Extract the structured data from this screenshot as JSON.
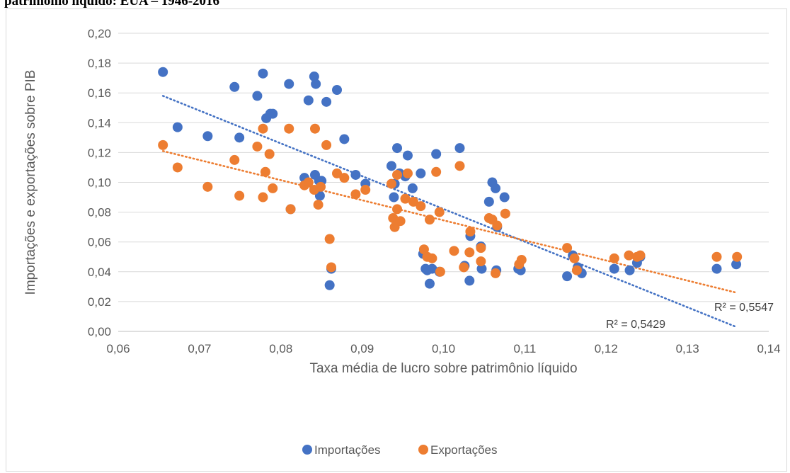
{
  "title": "patrimônio líquido: EUA – 1946-2016",
  "colors": {
    "importacoes": "#4472c4",
    "exportacoes": "#ed7d31",
    "grid": "#d9d9d9",
    "text": "#595959"
  },
  "chart_data": {
    "type": "scatter",
    "xlabel": "Taxa média de lucro sobre patrimônio líquido",
    "ylabel": "Importações e exportações sobre PIB",
    "xlim": [
      0.06,
      0.14
    ],
    "ylim": [
      0.0,
      0.2
    ],
    "x_ticks": [
      "0,06",
      "0,07",
      "0,08",
      "0,09",
      "0,10",
      "0,11",
      "0,12",
      "0,13",
      "0,14"
    ],
    "y_ticks": [
      "0,00",
      "0,02",
      "0,04",
      "0,06",
      "0,08",
      "0,10",
      "0,12",
      "0,14",
      "0,16",
      "0,18",
      "0,20"
    ],
    "grid": "horizontal",
    "legend_position": "bottom",
    "series": [
      {
        "name": "Importações",
        "color": "#4472c4",
        "trendline": {
          "type": "linear",
          "x": [
            0.0655,
            0.136
          ],
          "y": [
            0.158,
            0.003
          ],
          "label": "R² = 0,5429"
        },
        "points": [
          [
            0.0655,
            0.174
          ],
          [
            0.0673,
            0.137
          ],
          [
            0.071,
            0.131
          ],
          [
            0.0743,
            0.164
          ],
          [
            0.0749,
            0.13
          ],
          [
            0.0771,
            0.158
          ],
          [
            0.0778,
            0.173
          ],
          [
            0.0782,
            0.143
          ],
          [
            0.0787,
            0.146
          ],
          [
            0.079,
            0.146
          ],
          [
            0.081,
            0.166
          ],
          [
            0.0812,
            0.082
          ],
          [
            0.0829,
            0.103
          ],
          [
            0.0834,
            0.155
          ],
          [
            0.0841,
            0.171
          ],
          [
            0.0843,
            0.166
          ],
          [
            0.0842,
            0.105
          ],
          [
            0.0847,
            0.101
          ],
          [
            0.0848,
            0.091
          ],
          [
            0.085,
            0.101
          ],
          [
            0.0856,
            0.154
          ],
          [
            0.086,
            0.031
          ],
          [
            0.0862,
            0.042
          ],
          [
            0.0869,
            0.162
          ],
          [
            0.0878,
            0.129
          ],
          [
            0.0892,
            0.105
          ],
          [
            0.0904,
            0.099
          ],
          [
            0.0936,
            0.111
          ],
          [
            0.0939,
            0.09
          ],
          [
            0.094,
            0.099
          ],
          [
            0.0943,
            0.123
          ],
          [
            0.0946,
            0.106
          ],
          [
            0.0953,
            0.104
          ],
          [
            0.0956,
            0.118
          ],
          [
            0.0962,
            0.096
          ],
          [
            0.0972,
            0.106
          ],
          [
            0.0975,
            0.052
          ],
          [
            0.0978,
            0.042
          ],
          [
            0.098,
            0.041
          ],
          [
            0.0983,
            0.032
          ],
          [
            0.0986,
            0.042
          ],
          [
            0.0991,
            0.119
          ],
          [
            0.0995,
            0.04
          ],
          [
            0.102,
            0.123
          ],
          [
            0.1026,
            0.044
          ],
          [
            0.1032,
            0.034
          ],
          [
            0.1033,
            0.064
          ],
          [
            0.1046,
            0.057
          ],
          [
            0.1047,
            0.042
          ],
          [
            0.1056,
            0.087
          ],
          [
            0.106,
            0.1
          ],
          [
            0.1064,
            0.096
          ],
          [
            0.1065,
            0.041
          ],
          [
            0.1066,
            0.07
          ],
          [
            0.1075,
            0.09
          ],
          [
            0.1092,
            0.042
          ],
          [
            0.1095,
            0.041
          ],
          [
            0.1152,
            0.037
          ],
          [
            0.1159,
            0.051
          ],
          [
            0.1165,
            0.043
          ],
          [
            0.117,
            0.039
          ],
          [
            0.121,
            0.042
          ],
          [
            0.1229,
            0.041
          ],
          [
            0.1238,
            0.046
          ],
          [
            0.1242,
            0.05
          ],
          [
            0.1336,
            0.042
          ],
          [
            0.136,
            0.045
          ]
        ]
      },
      {
        "name": "Exportações",
        "color": "#ed7d31",
        "trendline": {
          "type": "linear",
          "x": [
            0.0655,
            0.136
          ],
          "y": [
            0.121,
            0.026
          ],
          "label": "R² = 0,5547"
        },
        "points": [
          [
            0.0655,
            0.125
          ],
          [
            0.0673,
            0.11
          ],
          [
            0.071,
            0.097
          ],
          [
            0.0743,
            0.115
          ],
          [
            0.0749,
            0.091
          ],
          [
            0.0771,
            0.124
          ],
          [
            0.0778,
            0.09
          ],
          [
            0.0778,
            0.136
          ],
          [
            0.0781,
            0.107
          ],
          [
            0.0786,
            0.119
          ],
          [
            0.079,
            0.096
          ],
          [
            0.081,
            0.136
          ],
          [
            0.0812,
            0.082
          ],
          [
            0.0829,
            0.098
          ],
          [
            0.0834,
            0.1
          ],
          [
            0.0841,
            0.095
          ],
          [
            0.0842,
            0.136
          ],
          [
            0.0846,
            0.085
          ],
          [
            0.0849,
            0.097
          ],
          [
            0.0856,
            0.125
          ],
          [
            0.086,
            0.062
          ],
          [
            0.0862,
            0.043
          ],
          [
            0.0869,
            0.106
          ],
          [
            0.0878,
            0.103
          ],
          [
            0.0892,
            0.092
          ],
          [
            0.0904,
            0.095
          ],
          [
            0.0936,
            0.099
          ],
          [
            0.0938,
            0.076
          ],
          [
            0.094,
            0.07
          ],
          [
            0.0943,
            0.105
          ],
          [
            0.0943,
            0.082
          ],
          [
            0.0947,
            0.074
          ],
          [
            0.0953,
            0.089
          ],
          [
            0.0956,
            0.106
          ],
          [
            0.0963,
            0.087
          ],
          [
            0.0972,
            0.084
          ],
          [
            0.0976,
            0.055
          ],
          [
            0.098,
            0.05
          ],
          [
            0.0983,
            0.075
          ],
          [
            0.0986,
            0.049
          ],
          [
            0.0991,
            0.107
          ],
          [
            0.0995,
            0.08
          ],
          [
            0.0996,
            0.04
          ],
          [
            0.1013,
            0.054
          ],
          [
            0.102,
            0.111
          ],
          [
            0.1025,
            0.043
          ],
          [
            0.1032,
            0.053
          ],
          [
            0.1033,
            0.067
          ],
          [
            0.1046,
            0.056
          ],
          [
            0.1046,
            0.047
          ],
          [
            0.1056,
            0.076
          ],
          [
            0.106,
            0.075
          ],
          [
            0.1064,
            0.039
          ],
          [
            0.1066,
            0.071
          ],
          [
            0.1076,
            0.079
          ],
          [
            0.1093,
            0.045
          ],
          [
            0.1096,
            0.048
          ],
          [
            0.1152,
            0.056
          ],
          [
            0.1161,
            0.049
          ],
          [
            0.1164,
            0.041
          ],
          [
            0.121,
            0.049
          ],
          [
            0.1228,
            0.051
          ],
          [
            0.1238,
            0.05
          ],
          [
            0.1242,
            0.051
          ],
          [
            0.1336,
            0.05
          ],
          [
            0.1361,
            0.05
          ]
        ]
      }
    ]
  }
}
